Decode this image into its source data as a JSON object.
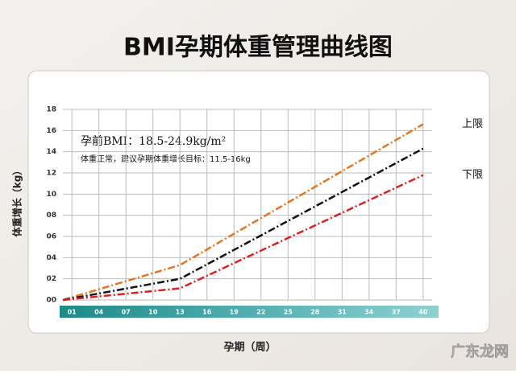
{
  "chart_data": {
    "type": "line",
    "title": "BMI孕期体重管理曲线图",
    "y_label": "体重增长（kg）",
    "x_label": "孕期（周）",
    "annotations": [
      "孕前BMI：18.5-24.9kg/m²",
      "体重正常，建议孕期体重增长目标：11.5-16kg"
    ],
    "x": [
      0,
      13,
      40
    ],
    "series": [
      {
        "name": "上限",
        "color": "#e8741e",
        "values": [
          0,
          3.3,
          16.6
        ]
      },
      {
        "color": "#111111",
        "values": [
          0,
          2,
          14.3
        ]
      },
      {
        "name": "下限",
        "color": "#e02020",
        "values": [
          0,
          1.1,
          11.8
        ]
      }
    ],
    "xlim": [
      0,
      41
    ],
    "xticks": [
      {
        "value": 1,
        "label": "01"
      },
      {
        "value": 4,
        "label": "04"
      },
      {
        "value": 7,
        "label": "07"
      },
      10,
      13,
      16,
      19,
      22,
      25,
      28,
      31,
      34,
      37,
      40
    ],
    "ylim": [
      0,
      18
    ],
    "yticks": [
      {
        "value": 0,
        "label": "00"
      },
      {
        "value": 2,
        "label": "02"
      },
      {
        "value": 4,
        "label": "04"
      },
      {
        "value": 6,
        "label": "06"
      },
      {
        "value": 8,
        "label": "08"
      },
      10,
      12,
      14,
      16,
      18
    ],
    "grid": true,
    "watermark": "广东龙网"
  }
}
